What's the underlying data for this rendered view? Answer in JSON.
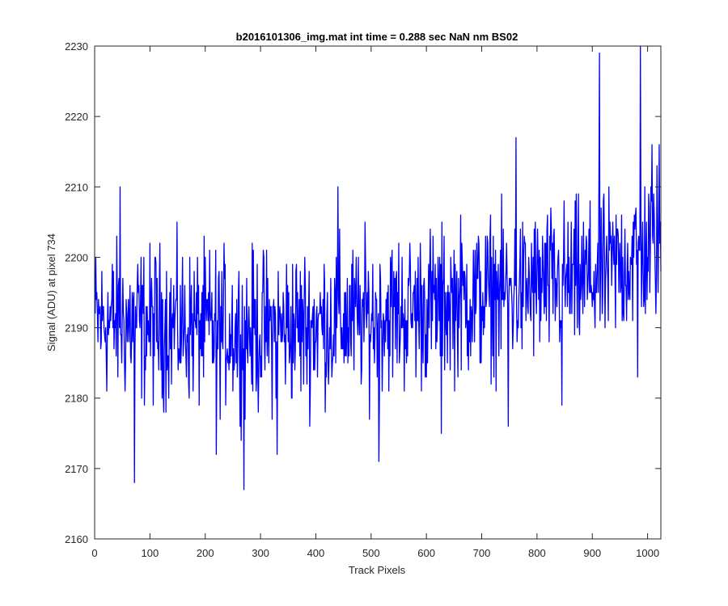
{
  "chart_data": {
    "type": "line",
    "title": "b2016101306_img.mat int time = 0.288 sec  NaN nm BS02",
    "xlabel": "Track Pixels",
    "ylabel": "Signal (ADU) at pixel 734",
    "xlim": [
      0,
      1024
    ],
    "ylim": [
      2160,
      2230
    ],
    "xticks": [
      0,
      100,
      200,
      300,
      400,
      500,
      600,
      700,
      800,
      900,
      1000
    ],
    "yticks": [
      2160,
      2170,
      2180,
      2190,
      2200,
      2210,
      2220,
      2230
    ],
    "grid": false,
    "legend": "none",
    "series": [
      {
        "color": "#0000ff",
        "x_start": 1,
        "x_step": 1,
        "trend": {
          "x": [
            1,
            300,
            500,
            700,
            900,
            1024
          ],
          "y": [
            2191,
            2189.5,
            2191.5,
            2194.5,
            2197,
            2202
          ]
        },
        "noise_amplitude": 6,
        "spikes": [
          {
            "x": 46,
            "y": 2210
          },
          {
            "x": 72,
            "y": 2168
          },
          {
            "x": 270,
            "y": 2167
          },
          {
            "x": 514,
            "y": 2171
          },
          {
            "x": 913,
            "y": 2229
          },
          {
            "x": 987,
            "y": 2230
          },
          {
            "x": 982,
            "y": 2183
          },
          {
            "x": 845,
            "y": 2179
          },
          {
            "x": 220,
            "y": 2172
          },
          {
            "x": 330,
            "y": 2172
          },
          {
            "x": 627,
            "y": 2175
          },
          {
            "x": 748,
            "y": 2176
          },
          {
            "x": 440,
            "y": 2210
          },
          {
            "x": 762,
            "y": 2217
          },
          {
            "x": 1008,
            "y": 2216
          },
          {
            "x": 1021,
            "y": 2216
          }
        ]
      }
    ]
  }
}
